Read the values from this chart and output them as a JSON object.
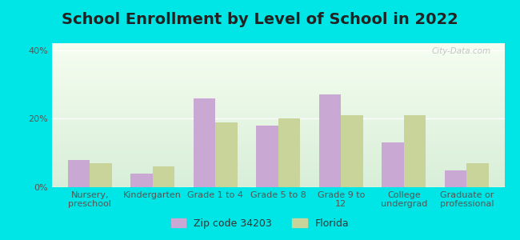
{
  "title": "School Enrollment by Level of School in 2022",
  "categories": [
    "Nursery,\npreschool",
    "Kindergarten",
    "Grade 1 to 4",
    "Grade 5 to 8",
    "Grade 9 to\n12",
    "College\nundergrad",
    "Graduate or\nprofessional"
  ],
  "zip_values": [
    8,
    4,
    26,
    18,
    27,
    13,
    5
  ],
  "fl_values": [
    7,
    6,
    19,
    20,
    21,
    21,
    7
  ],
  "zip_color": "#c9a8d4",
  "fl_color": "#c8d49a",
  "background_outer": "#00e5e5",
  "plot_bg_top": "#d8eed8",
  "plot_bg_bottom": "#f5fdf0",
  "ylabel_ticks": [
    "0%",
    "20%",
    "40%"
  ],
  "yticks": [
    0,
    20,
    40
  ],
  "ylim": [
    0,
    42
  ],
  "bar_width": 0.35,
  "legend_zip": "Zip code 34203",
  "legend_fl": "Florida",
  "watermark": "City-Data.com",
  "title_fontsize": 14,
  "tick_fontsize": 8,
  "legend_fontsize": 9
}
